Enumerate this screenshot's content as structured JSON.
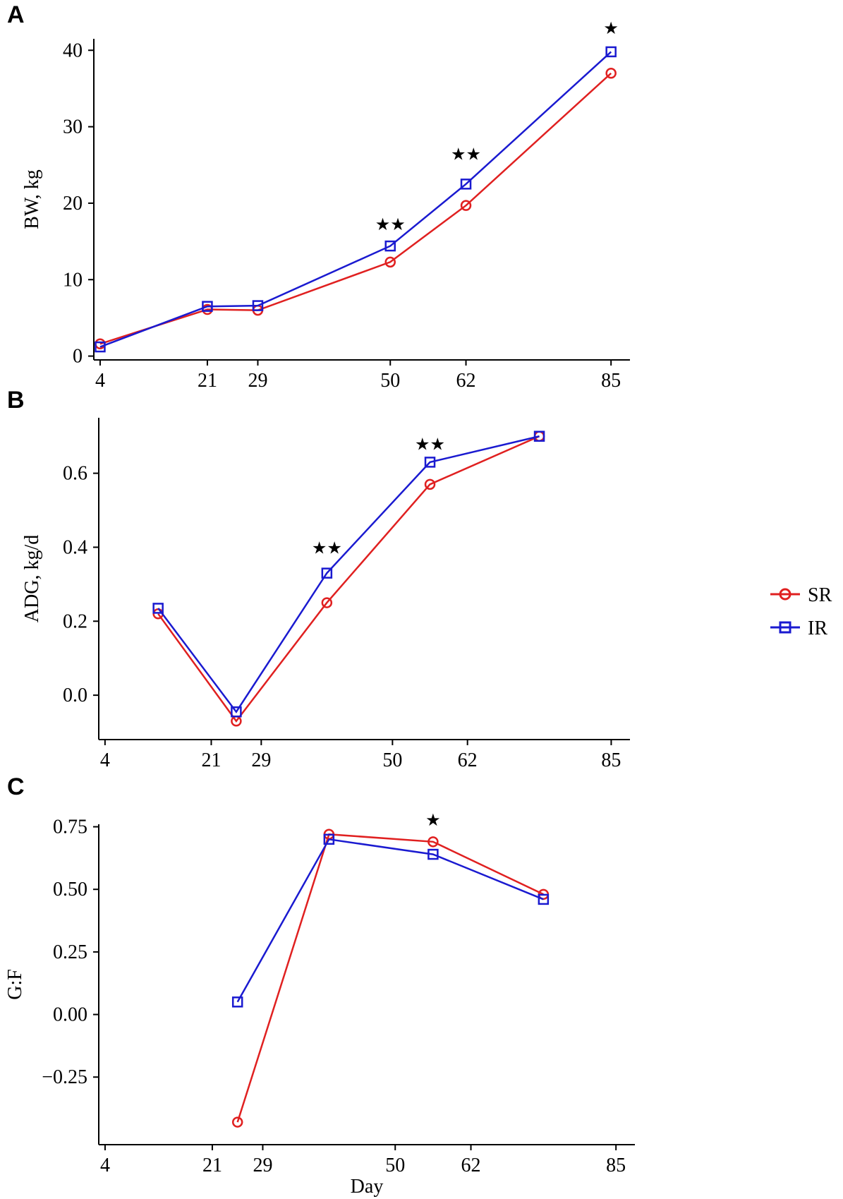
{
  "chart_data": [
    {
      "type": "line",
      "panel": "A",
      "ylabel": "BW, kg",
      "xlabel": "",
      "x_ticks": [
        4,
        21,
        29,
        50,
        62,
        85
      ],
      "y_ticks": [
        "0",
        "10",
        "20",
        "30",
        "40"
      ],
      "y_tick_values": [
        0,
        10,
        20,
        30,
        40
      ],
      "xlim": [
        3,
        88
      ],
      "ylim": [
        -0.5,
        41.5
      ],
      "series": [
        {
          "name": "SR",
          "x": [
            4,
            21,
            29,
            50,
            62,
            85
          ],
          "y": [
            1.6,
            6.1,
            6.0,
            12.3,
            19.7,
            37.0
          ]
        },
        {
          "name": "IR",
          "x": [
            4,
            21,
            29,
            50,
            62,
            85
          ],
          "y": [
            1.2,
            6.5,
            6.6,
            14.4,
            22.5,
            39.8
          ]
        }
      ],
      "significance": [
        {
          "x": 50,
          "y": 17.3,
          "label": "★★"
        },
        {
          "x": 62,
          "y": 26.5,
          "label": "★★"
        },
        {
          "x": 85,
          "y": 43.0,
          "label": "★"
        }
      ]
    },
    {
      "type": "line",
      "panel": "B",
      "ylabel": "ADG, kg/d",
      "xlabel": "",
      "x_ticks": [
        4,
        21,
        29,
        50,
        62,
        85
      ],
      "y_ticks": [
        "0.0",
        "0.2",
        "0.4",
        "0.6"
      ],
      "y_tick_values": [
        0.0,
        0.2,
        0.4,
        0.6
      ],
      "xlim": [
        3,
        88
      ],
      "ylim": [
        -0.12,
        0.75
      ],
      "series": [
        {
          "name": "SR",
          "x": [
            12.5,
            25,
            39.5,
            56,
            73.5
          ],
          "y": [
            0.22,
            -0.07,
            0.25,
            0.57,
            0.7
          ]
        },
        {
          "name": "IR",
          "x": [
            12.5,
            25,
            39.5,
            56,
            73.5
          ],
          "y": [
            0.235,
            -0.045,
            0.33,
            0.63,
            0.7
          ]
        }
      ],
      "significance": [
        {
          "x": 39.5,
          "y": 0.4,
          "label": "★★"
        },
        {
          "x": 56,
          "y": 0.68,
          "label": "★★"
        }
      ]
    },
    {
      "type": "line",
      "panel": "C",
      "ylabel": "G:F",
      "xlabel": "Day",
      "x_ticks": [
        4,
        21,
        29,
        50,
        62,
        85
      ],
      "y_ticks": [
        "−0.25",
        "0.00",
        "0.25",
        "0.50",
        "0.75"
      ],
      "y_tick_values": [
        -0.25,
        0.0,
        0.25,
        0.5,
        0.75
      ],
      "xlim": [
        3,
        88
      ],
      "ylim": [
        -0.52,
        0.76
      ],
      "series": [
        {
          "name": "SR",
          "x": [
            25,
            39.5,
            56,
            73.5
          ],
          "y": [
            -0.43,
            0.72,
            0.69,
            0.48
          ]
        },
        {
          "name": "IR",
          "x": [
            25,
            39.5,
            56,
            73.5
          ],
          "y": [
            0.05,
            0.7,
            0.64,
            0.46
          ]
        }
      ],
      "significance": [
        {
          "x": 56,
          "y": 0.78,
          "label": "★"
        }
      ]
    }
  ],
  "legend": {
    "items": [
      {
        "name": "SR",
        "color": "#e02020",
        "marker": "circle"
      },
      {
        "name": "IR",
        "color": "#1a1ad0",
        "marker": "square"
      }
    ]
  },
  "colors": {
    "SR": "#e02020",
    "IR": "#1a1ad0"
  }
}
